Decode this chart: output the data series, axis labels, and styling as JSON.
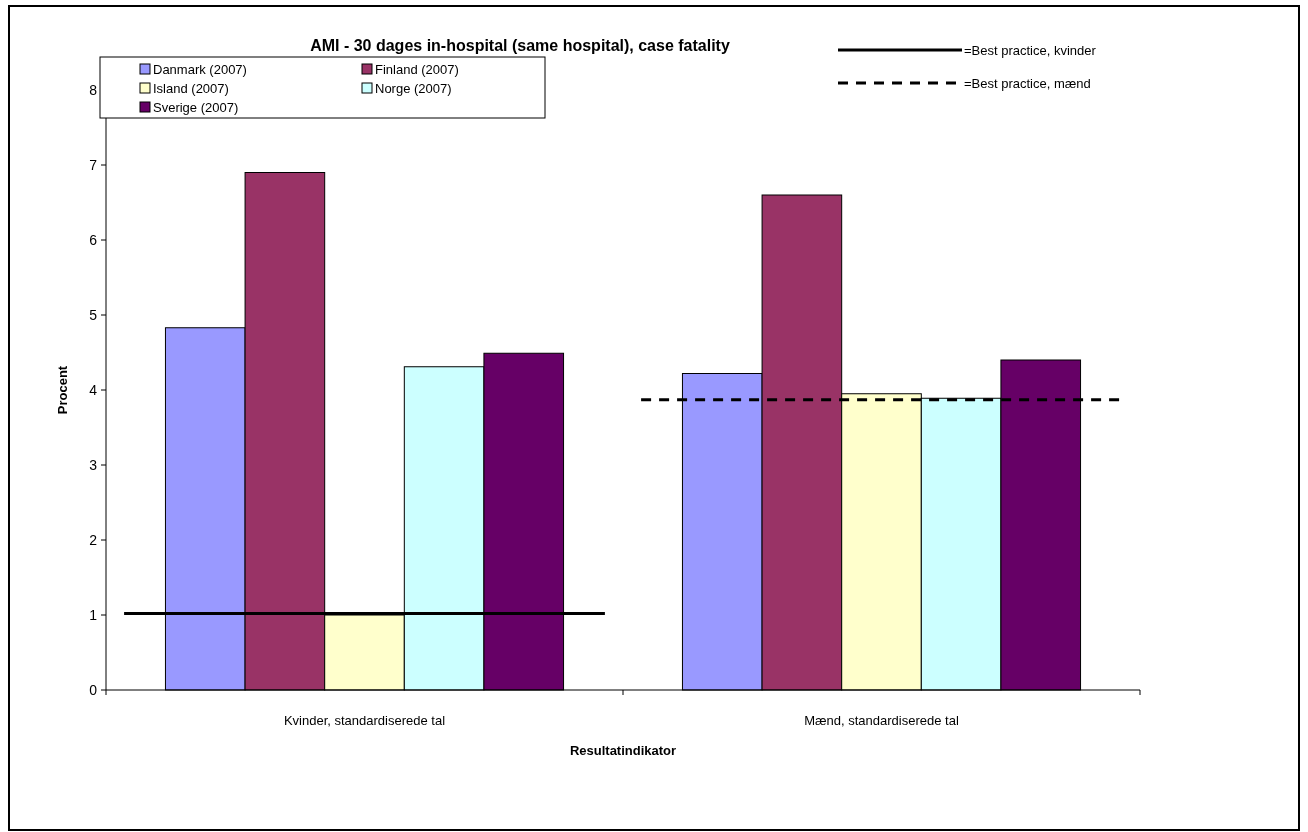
{
  "chart_data": {
    "type": "bar",
    "title": "AMI - 30 dages in-hospital (same hospital), case fatality",
    "xlabel": "Resultatindikator",
    "ylabel": "Procent",
    "categories": [
      "Kvinder, standardiserede tal",
      "Mænd, standardiserede tal"
    ],
    "series": [
      {
        "name": "Danmark (2007)",
        "color": "#9999ff",
        "values": [
          4.83,
          4.22
        ]
      },
      {
        "name": "Finland (2007)",
        "color": "#993366",
        "values": [
          6.9,
          6.6
        ]
      },
      {
        "name": "Island (2007)",
        "color": "#ffffcc",
        "values": [
          1.0,
          3.95
        ]
      },
      {
        "name": "Norge (2007)",
        "color": "#ccffff",
        "values": [
          4.31,
          3.89
        ]
      },
      {
        "name": "Sverige (2007)",
        "color": "#660066",
        "values": [
          4.49,
          4.4
        ]
      }
    ],
    "ref_lines": [
      {
        "axis": "y",
        "value": 1.02,
        "color": "#000000",
        "line_style": "solid"
      },
      {
        "axis": "y",
        "value": 3.87,
        "color": "#000000",
        "line_style": "dashed"
      }
    ],
    "annotations": [
      "=Best practice, kvinder",
      "=Best practice, mænd"
    ],
    "ylim": [
      0,
      8
    ],
    "yticks": [
      0,
      1,
      2,
      3,
      4,
      5,
      6,
      7,
      8
    ],
    "grid": false,
    "legend": "top"
  }
}
